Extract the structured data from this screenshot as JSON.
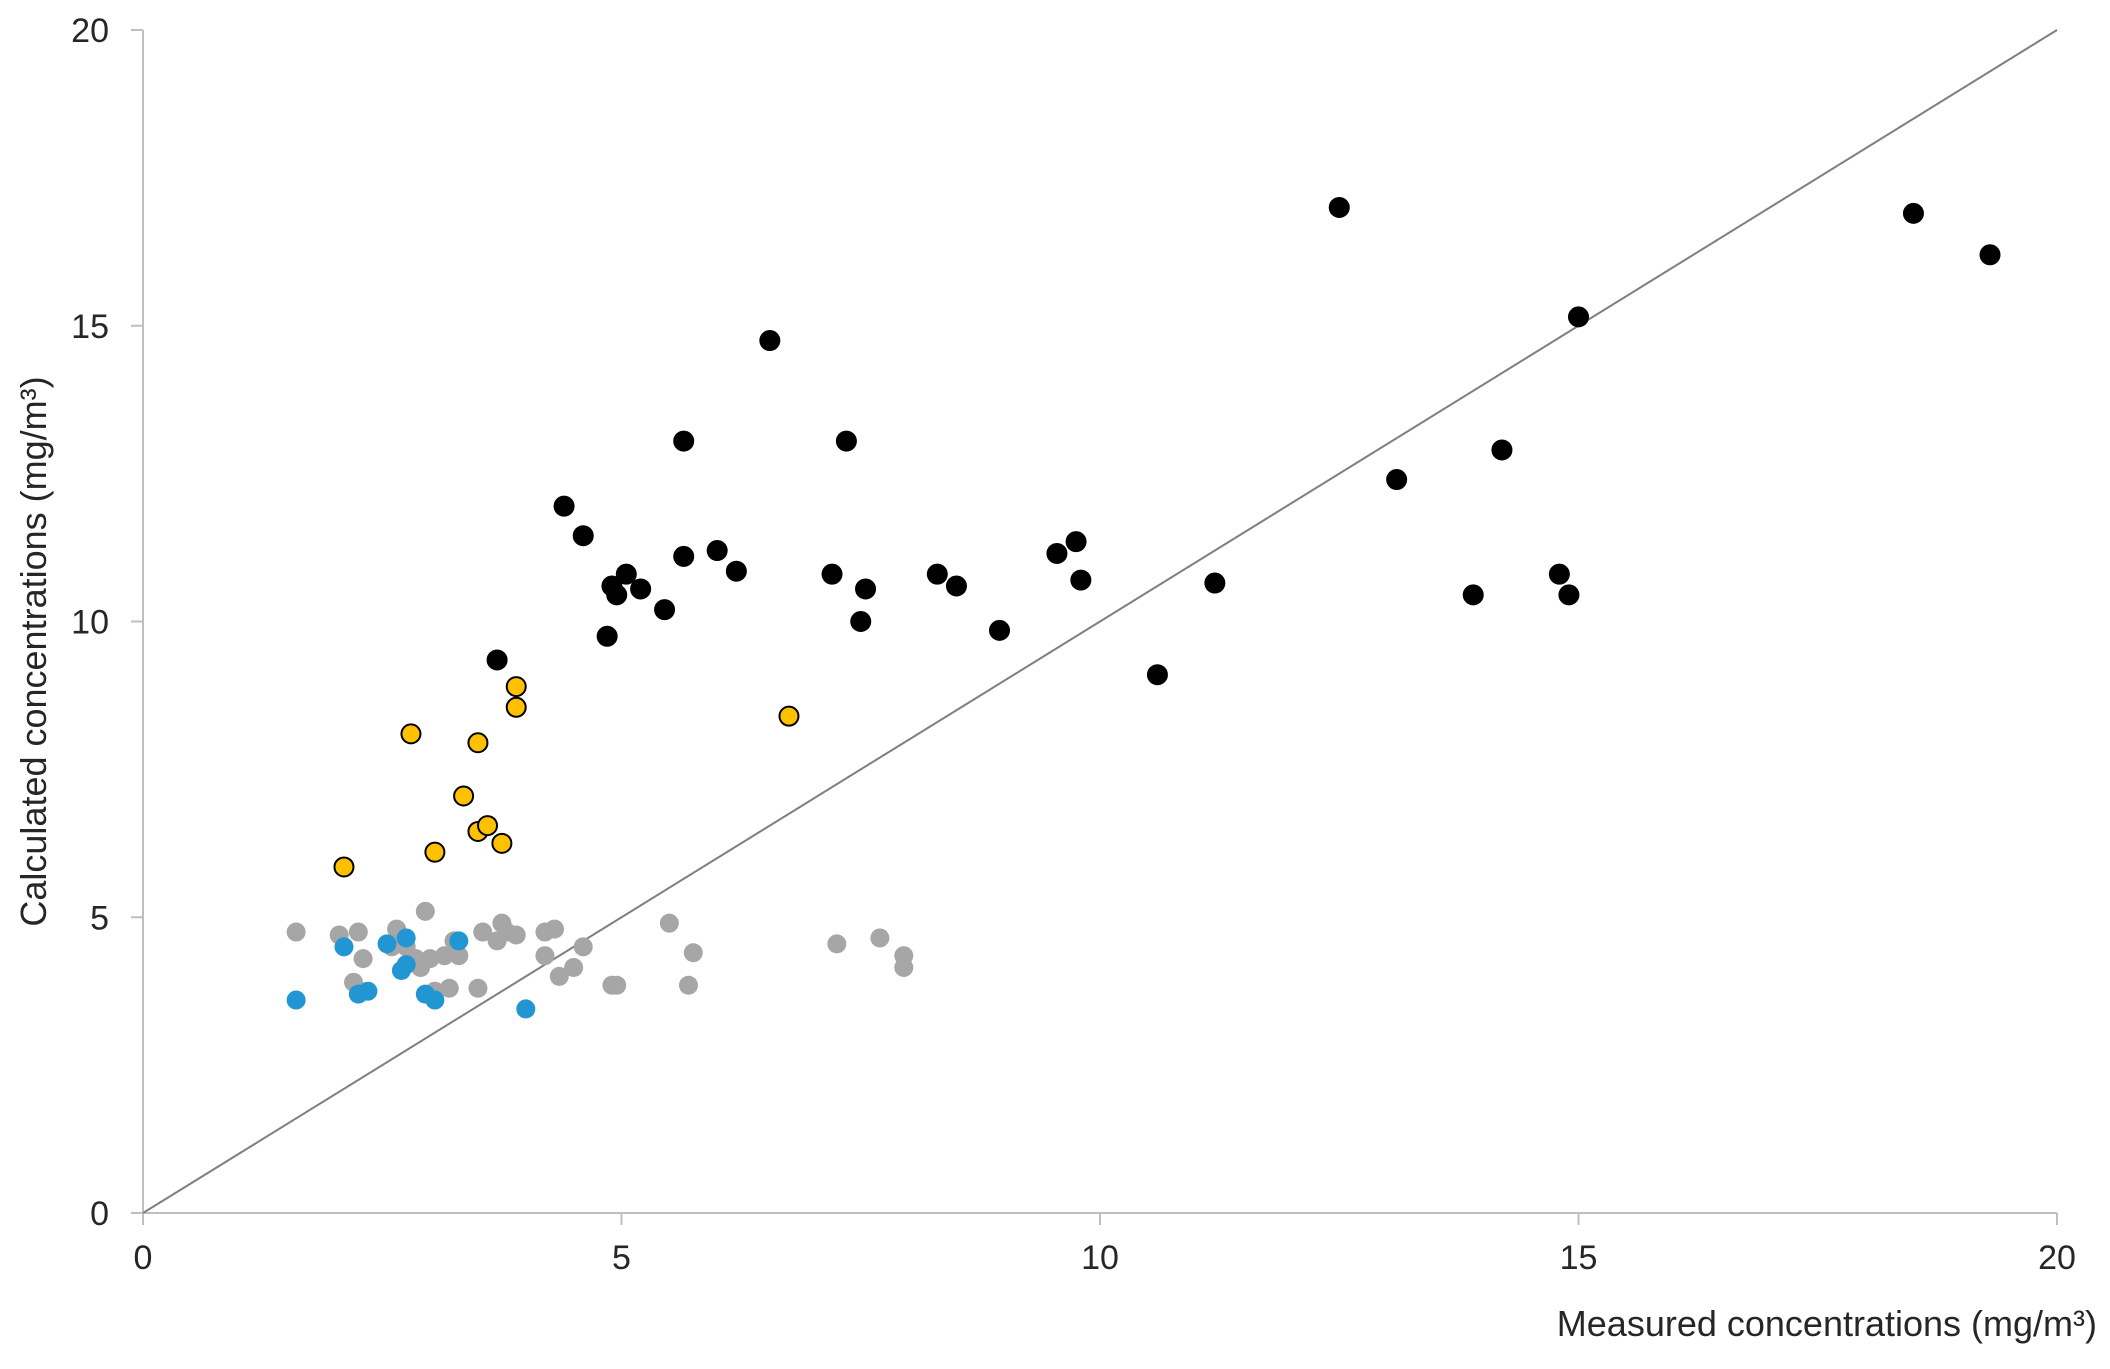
{
  "chart_data": {
    "type": "scatter",
    "title": "",
    "xlabel": "Measured concentrations (mg/m³)",
    "ylabel": "Calculated concentrations (mg/m³)",
    "xlim": [
      0,
      20
    ],
    "ylim": [
      0,
      20
    ],
    "x_ticks": [
      "0",
      "5",
      "10",
      "15",
      "20"
    ],
    "y_ticks": [
      "0",
      "5",
      "10",
      "15",
      "20"
    ],
    "grid": false,
    "legend": "none",
    "reference_line": {
      "from": [
        0,
        0
      ],
      "to": [
        20,
        20
      ],
      "color": "#7f7f7f"
    },
    "series": [
      {
        "color": "#000000",
        "stroke": "#000000",
        "points": [
          [
            3.7,
            9.35
          ],
          [
            4.4,
            11.95
          ],
          [
            4.6,
            11.45
          ],
          [
            4.85,
            9.75
          ],
          [
            4.9,
            10.6
          ],
          [
            4.95,
            10.45
          ],
          [
            5.05,
            10.8
          ],
          [
            5.2,
            10.55
          ],
          [
            5.45,
            10.2
          ],
          [
            5.65,
            13.05
          ],
          [
            5.65,
            11.1
          ],
          [
            6.0,
            11.2
          ],
          [
            6.2,
            10.85
          ],
          [
            6.55,
            14.75
          ],
          [
            7.2,
            10.8
          ],
          [
            7.35,
            13.05
          ],
          [
            7.5,
            10.0
          ],
          [
            7.55,
            10.55
          ],
          [
            8.3,
            10.8
          ],
          [
            8.5,
            10.6
          ],
          [
            8.95,
            9.85
          ],
          [
            9.55,
            11.15
          ],
          [
            9.75,
            11.35
          ],
          [
            9.8,
            10.7
          ],
          [
            10.6,
            9.1
          ],
          [
            11.2,
            10.65
          ],
          [
            12.5,
            17.0
          ],
          [
            13.1,
            12.4
          ],
          [
            13.9,
            10.45
          ],
          [
            14.2,
            12.9
          ],
          [
            14.8,
            10.8
          ],
          [
            14.9,
            10.45
          ],
          [
            15.0,
            15.15
          ],
          [
            18.5,
            16.9
          ],
          [
            19.3,
            16.2
          ]
        ]
      },
      {
        "color": "#ffc000",
        "stroke": "#000000",
        "points": [
          [
            2.1,
            5.85
          ],
          [
            2.8,
            8.1
          ],
          [
            3.05,
            6.1
          ],
          [
            3.35,
            7.05
          ],
          [
            3.5,
            6.45
          ],
          [
            3.5,
            7.95
          ],
          [
            3.6,
            6.55
          ],
          [
            3.75,
            6.25
          ],
          [
            3.9,
            8.9
          ],
          [
            3.9,
            8.55
          ],
          [
            6.75,
            8.4
          ]
        ]
      },
      {
        "color": "#a6a6a6",
        "stroke": "none",
        "points": [
          [
            1.6,
            4.75
          ],
          [
            2.05,
            4.7
          ],
          [
            2.2,
            3.9
          ],
          [
            2.25,
            4.75
          ],
          [
            2.3,
            4.3
          ],
          [
            2.6,
            4.5
          ],
          [
            2.65,
            4.8
          ],
          [
            2.75,
            4.5
          ],
          [
            2.85,
            4.3
          ],
          [
            2.9,
            4.15
          ],
          [
            2.95,
            5.1
          ],
          [
            3.0,
            4.3
          ],
          [
            3.05,
            3.75
          ],
          [
            3.15,
            4.35
          ],
          [
            3.2,
            3.8
          ],
          [
            3.25,
            4.6
          ],
          [
            3.3,
            4.35
          ],
          [
            3.5,
            3.8
          ],
          [
            3.55,
            4.75
          ],
          [
            3.7,
            4.6
          ],
          [
            3.75,
            4.9
          ],
          [
            3.8,
            4.75
          ],
          [
            3.9,
            4.7
          ],
          [
            4.2,
            4.75
          ],
          [
            4.2,
            4.35
          ],
          [
            4.3,
            4.8
          ],
          [
            4.35,
            4.0
          ],
          [
            4.5,
            4.15
          ],
          [
            4.6,
            4.5
          ],
          [
            4.9,
            3.85
          ],
          [
            4.95,
            3.85
          ],
          [
            5.5,
            4.9
          ],
          [
            5.7,
            3.85
          ],
          [
            5.75,
            4.4
          ],
          [
            7.25,
            4.55
          ],
          [
            7.7,
            4.65
          ],
          [
            7.95,
            4.35
          ],
          [
            7.95,
            4.15
          ]
        ]
      },
      {
        "color": "#2196d3",
        "stroke": "none",
        "points": [
          [
            1.6,
            3.6
          ],
          [
            2.1,
            4.5
          ],
          [
            2.25,
            3.7
          ],
          [
            2.35,
            3.75
          ],
          [
            2.55,
            4.55
          ],
          [
            2.7,
            4.1
          ],
          [
            2.75,
            4.2
          ],
          [
            2.75,
            4.65
          ],
          [
            2.95,
            3.7
          ],
          [
            3.05,
            3.6
          ],
          [
            3.3,
            4.6
          ],
          [
            4.0,
            3.45
          ]
        ]
      }
    ]
  }
}
